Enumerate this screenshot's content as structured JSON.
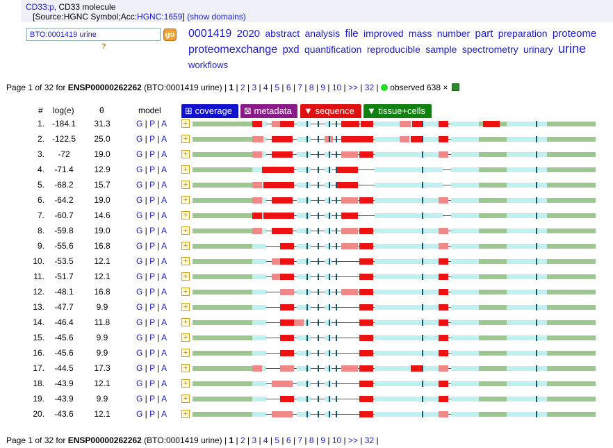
{
  "header": {
    "gene_link": "CD33:p",
    "gene_desc": ", CD33 molecule",
    "source_prefix": "[Source:HGNC Symbol;Acc:",
    "acc_link": "HGNC:1659",
    "source_suffix": "]",
    "show_domains": "(show domains)"
  },
  "search": {
    "value": "BTO:0001419 urine",
    "go_label": "go",
    "help": "?"
  },
  "cloud": [
    {
      "w": "0001419",
      "s": 16
    },
    {
      "w": "2020",
      "s": 15
    },
    {
      "w": "abstract",
      "s": 14
    },
    {
      "w": "analysis",
      "s": 14
    },
    {
      "w": "file",
      "s": 15
    },
    {
      "w": "improved",
      "s": 14
    },
    {
      "w": "mass",
      "s": 14
    },
    {
      "w": "number",
      "s": 14
    },
    {
      "w": "part",
      "s": 15
    },
    {
      "w": "preparation",
      "s": 14
    },
    {
      "w": "proteome",
      "s": 15
    },
    {
      "w": "proteomexchange",
      "s": 16
    },
    {
      "w": "pxd",
      "s": 15
    },
    {
      "w": "quantification",
      "s": 14
    },
    {
      "w": "reproducible",
      "s": 14
    },
    {
      "w": "sample",
      "s": 14
    },
    {
      "w": "spectrometry",
      "s": 14
    },
    {
      "w": "urinary",
      "s": 14
    },
    {
      "w": "urine",
      "s": 18
    },
    {
      "w": "workflows",
      "s": 13
    }
  ],
  "pager": {
    "prefix": "Page 1 of 32 for ",
    "protein": "ENSP00000262262",
    "context": " (BTO:0001419 urine) | ",
    "current": "1",
    "pages": [
      "2",
      "3",
      "4",
      "5",
      "6",
      "7",
      "8",
      "9",
      "10",
      ">>",
      "32"
    ],
    "observed": "observed 638 ×"
  },
  "columns": {
    "num": "#",
    "loge": "log(e)",
    "theta": "θ",
    "model": "model"
  },
  "tabs": {
    "coverage": "⊞ coverage",
    "metadata": "⊠ metadata",
    "sequence": "▼ sequence",
    "tissue": "▼ tissue+cells"
  },
  "colors": {
    "coverage": "#1010d0",
    "metadata": "#8a1a8a",
    "sequence": "#e01010",
    "tissue": "#108010"
  },
  "model_links": [
    "G",
    "P",
    "A"
  ],
  "rows": [
    {
      "num": "1.",
      "loge": "-184.1",
      "theta": "31.3"
    },
    {
      "num": "2.",
      "loge": "-122.5",
      "theta": "25.0"
    },
    {
      "num": "3.",
      "loge": "-72",
      "theta": "19.0"
    },
    {
      "num": "4.",
      "loge": "-71.4",
      "theta": "12.9"
    },
    {
      "num": "5.",
      "loge": "-68.2",
      "theta": "15.7"
    },
    {
      "num": "6.",
      "loge": "-64.2",
      "theta": "19.0"
    },
    {
      "num": "7.",
      "loge": "-60.7",
      "theta": "14.6"
    },
    {
      "num": "8.",
      "loge": "-59.8",
      "theta": "19.0"
    },
    {
      "num": "9.",
      "loge": "-55.6",
      "theta": "16.8"
    },
    {
      "num": "10.",
      "loge": "-53.5",
      "theta": "12.1"
    },
    {
      "num": "11.",
      "loge": "-51.7",
      "theta": "12.1"
    },
    {
      "num": "12.",
      "loge": "-48.1",
      "theta": "16.8"
    },
    {
      "num": "13.",
      "loge": "-47.7",
      "theta": "9.9"
    },
    {
      "num": "14.",
      "loge": "-46.4",
      "theta": "11.8"
    },
    {
      "num": "15.",
      "loge": "-45.6",
      "theta": "9.9"
    },
    {
      "num": "16.",
      "loge": "-45.6",
      "theta": "9.9"
    },
    {
      "num": "17.",
      "loge": "-44.5",
      "theta": "17.3"
    },
    {
      "num": "18.",
      "loge": "-43.9",
      "theta": "12.1"
    },
    {
      "num": "19.",
      "loge": "-43.9",
      "theta": "9.9"
    },
    {
      "num": "20.",
      "loge": "-43.6",
      "theta": "12.1"
    }
  ]
}
